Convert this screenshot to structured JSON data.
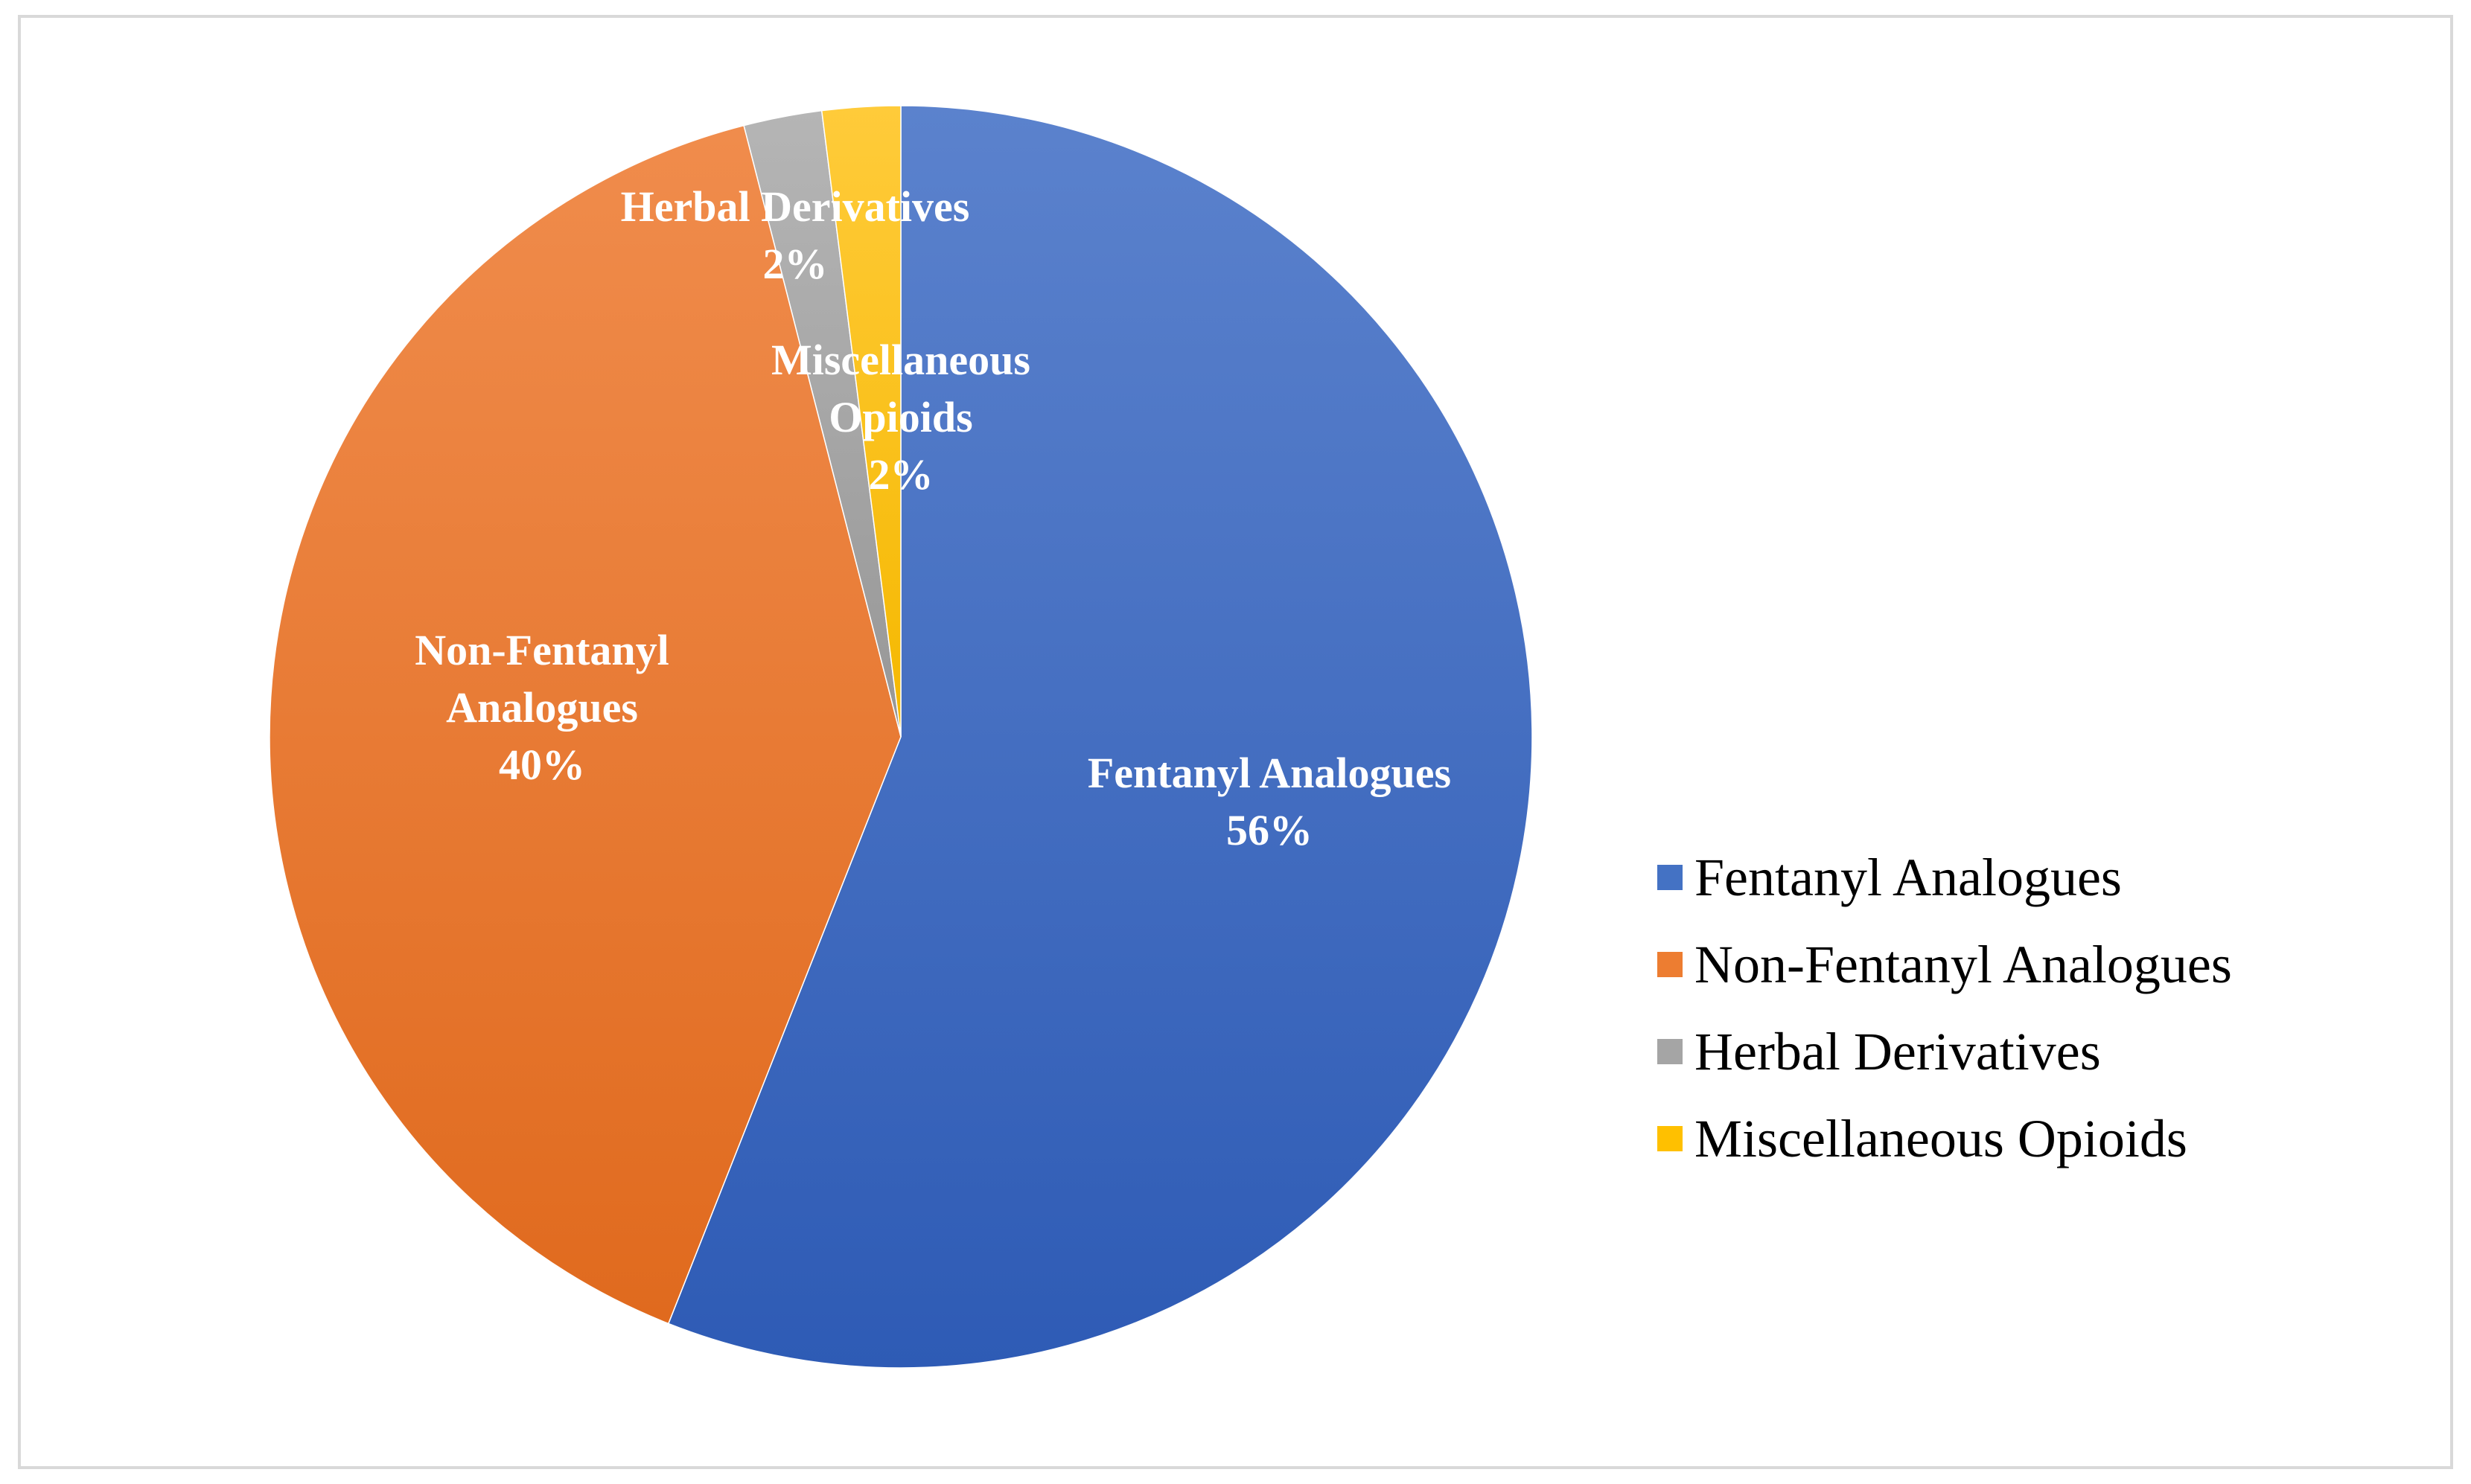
{
  "chart_data": {
    "type": "pie",
    "title": "",
    "start_angle_deg": 0,
    "direction": "clockwise",
    "legend_position": "right",
    "slices": [
      {
        "key": "fentanyl",
        "name": "Fentanyl Analogues",
        "value": 56,
        "label": "56%",
        "label_lines": [
          "Fentanyl Analogues"
        ],
        "color": "#4472C4",
        "color_light": "#5B82CD",
        "color_dark": "#2E5BB5"
      },
      {
        "key": "non-fentanyl",
        "name": "Non-Fentanyl Analogues",
        "value": 40,
        "label": "40%",
        "label_lines": [
          "Non-Fentanyl",
          "Analogues"
        ],
        "color": "#ED7D31",
        "color_light": "#F08C4C",
        "color_dark": "#E06A1E"
      },
      {
        "key": "herbal",
        "name": "Herbal Derivatives",
        "value": 2,
        "label": "2%",
        "label_lines": [
          "Herbal Derivatives"
        ],
        "color": "#A5A5A5",
        "color_light": "#B5B5B5",
        "color_dark": "#979797"
      },
      {
        "key": "misc",
        "name": "Miscellaneous Opioids",
        "value": 2,
        "label": "2%",
        "label_lines": [
          "Miscellaneous",
          "Opioids"
        ],
        "color": "#FFC000",
        "color_light": "#FFCB3A",
        "color_dark": "#F5B800"
      }
    ]
  }
}
